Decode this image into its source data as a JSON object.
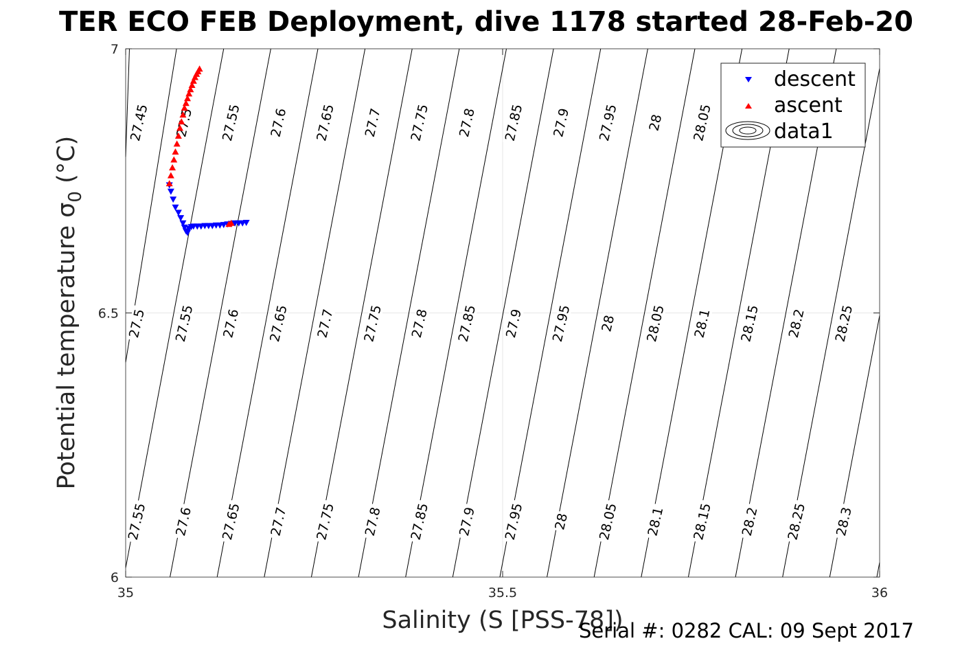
{
  "title": "TER ECO FEB Deployment, dive 1178 started 28-Feb-20",
  "footer": "Serial #: 0282  CAL: 09 Sept 2017",
  "chart_data": {
    "type": "scatter",
    "xlabel": "Salinity (S [PSS-78])",
    "ylabel_main": "Potential temperature σ",
    "ylabel_sub": "0",
    "ylabel_unit": " (°C)",
    "xlim": [
      35,
      36
    ],
    "ylim": [
      6,
      7
    ],
    "xticks": [
      35,
      35.5,
      36
    ],
    "xtick_labels": [
      "35",
      "35.5",
      "36"
    ],
    "yticks": [
      6,
      6.5,
      7
    ],
    "ytick_labels": [
      "6",
      "6.5",
      "7"
    ],
    "grid": true,
    "legend_position": "top-right",
    "legend": [
      "descent",
      "ascent",
      "data1"
    ],
    "colors": {
      "descent": "#0000ff",
      "ascent": "#ff0000",
      "contour": "#000000",
      "grid": "#e6e6e6"
    },
    "series": [
      {
        "name": "descent",
        "marker": "triangle-down",
        "x": [
          35.058,
          35.06,
          35.063,
          35.066,
          35.07,
          35.073,
          35.076,
          35.078,
          35.08,
          35.082,
          35.084,
          35.087,
          35.09,
          35.095,
          35.1,
          35.105,
          35.11,
          35.115,
          35.12,
          35.125,
          35.13,
          35.135,
          35.14,
          35.145,
          35.15,
          35.155,
          35.16
        ],
        "y": [
          6.742,
          6.73,
          6.715,
          6.7,
          6.69,
          6.68,
          6.67,
          6.662,
          6.655,
          6.652,
          6.66,
          6.663,
          6.664,
          6.664,
          6.664,
          6.665,
          6.665,
          6.665,
          6.666,
          6.666,
          6.667,
          6.668,
          6.669,
          6.67,
          6.67,
          6.67,
          6.671
        ]
      },
      {
        "name": "ascent",
        "marker": "triangle-up",
        "x": [
          35.058,
          35.06,
          35.062,
          35.064,
          35.066,
          35.068,
          35.07,
          35.072,
          35.074,
          35.076,
          35.078,
          35.08,
          35.082,
          35.084,
          35.086,
          35.088,
          35.09,
          35.092,
          35.094,
          35.096,
          35.098,
          35.137,
          35.14
        ],
        "y": [
          6.745,
          6.76,
          6.775,
          6.79,
          6.805,
          6.82,
          6.835,
          6.85,
          6.862,
          6.875,
          6.888,
          6.897,
          6.906,
          6.915,
          6.923,
          6.931,
          6.939,
          6.946,
          6.952,
          6.957,
          6.962,
          6.668,
          6.67
        ]
      }
    ],
    "contours": {
      "name": "data1",
      "lines": [
        {
          "x": [
            35.0,
            35.005
          ],
          "y": [
            6.7955,
            7.0
          ]
        },
        {
          "x": [
            35.0,
            35.0675
          ],
          "y": [
            6.4065,
            7.0
          ]
        },
        {
          "x": [
            35.0,
            35.13
          ],
          "y": [
            6.0175,
            7.0
          ]
        },
        {
          "x": [
            35.0588,
            35.1925
          ],
          "y": [
            6.0,
            7.0
          ]
        },
        {
          "x": [
            35.1213,
            35.255
          ],
          "y": [
            6.0,
            7.0
          ]
        },
        {
          "x": [
            35.1838,
            35.3175
          ],
          "y": [
            6.0,
            7.0
          ]
        },
        {
          "x": [
            35.2463,
            35.38
          ],
          "y": [
            6.0,
            7.0
          ]
        },
        {
          "x": [
            35.3088,
            35.4425
          ],
          "y": [
            6.0,
            7.0
          ]
        },
        {
          "x": [
            35.3713,
            35.505
          ],
          "y": [
            6.0,
            7.0
          ]
        },
        {
          "x": [
            35.4338,
            35.5675
          ],
          "y": [
            6.0,
            7.0
          ]
        },
        {
          "x": [
            35.4963,
            35.63
          ],
          "y": [
            6.0,
            7.0
          ]
        },
        {
          "x": [
            35.5588,
            35.6925
          ],
          "y": [
            6.0,
            7.0
          ]
        },
        {
          "x": [
            35.6213,
            35.755
          ],
          "y": [
            6.0,
            7.0
          ]
        },
        {
          "x": [
            35.6838,
            35.8175
          ],
          "y": [
            6.0,
            7.0
          ]
        },
        {
          "x": [
            35.7463,
            35.88
          ],
          "y": [
            6.0,
            7.0
          ]
        },
        {
          "x": [
            35.8088,
            35.9425
          ],
          "y": [
            6.0,
            7.0
          ]
        },
        {
          "x": [
            35.8713,
            36.0
          ],
          "y": [
            6.0,
            6.9625
          ]
        },
        {
          "x": [
            35.9338,
            36.0
          ],
          "y": [
            6.0,
            6.495
          ]
        },
        {
          "x": [
            35.9963,
            36.0
          ],
          "y": [
            6.0,
            6.0277
          ]
        }
      ],
      "labels": [
        {
          "text": "27.45",
          "x": 35.018,
          "y": 6.86
        },
        {
          "text": "27.5",
          "x": 35.078,
          "y": 6.86
        },
        {
          "text": "27.55",
          "x": 35.14,
          "y": 6.86
        },
        {
          "text": "27.6",
          "x": 35.203,
          "y": 6.86
        },
        {
          "text": "27.65",
          "x": 35.265,
          "y": 6.86
        },
        {
          "text": "27.7",
          "x": 35.328,
          "y": 6.86
        },
        {
          "text": "27.75",
          "x": 35.39,
          "y": 6.86
        },
        {
          "text": "27.8",
          "x": 35.453,
          "y": 6.86
        },
        {
          "text": "27.85",
          "x": 35.515,
          "y": 6.86
        },
        {
          "text": "27.9",
          "x": 35.578,
          "y": 6.86
        },
        {
          "text": "27.95",
          "x": 35.64,
          "y": 6.86
        },
        {
          "text": "28",
          "x": 35.703,
          "y": 6.86
        },
        {
          "text": "28.05",
          "x": 35.765,
          "y": 6.86
        },
        {
          "text": "27.5",
          "x": 35.015,
          "y": 6.48
        },
        {
          "text": "27.55",
          "x": 35.078,
          "y": 6.48
        },
        {
          "text": "27.6",
          "x": 35.14,
          "y": 6.48
        },
        {
          "text": "27.65",
          "x": 35.203,
          "y": 6.48
        },
        {
          "text": "27.7",
          "x": 35.265,
          "y": 6.48
        },
        {
          "text": "27.75",
          "x": 35.328,
          "y": 6.48
        },
        {
          "text": "27.8",
          "x": 35.39,
          "y": 6.48
        },
        {
          "text": "27.85",
          "x": 35.453,
          "y": 6.48
        },
        {
          "text": "27.9",
          "x": 35.515,
          "y": 6.48
        },
        {
          "text": "27.95",
          "x": 35.578,
          "y": 6.48
        },
        {
          "text": "28",
          "x": 35.64,
          "y": 6.48
        },
        {
          "text": "28.05",
          "x": 35.703,
          "y": 6.48
        },
        {
          "text": "28.1",
          "x": 35.765,
          "y": 6.48
        },
        {
          "text": "28.15",
          "x": 35.828,
          "y": 6.48
        },
        {
          "text": "28.2",
          "x": 35.89,
          "y": 6.48
        },
        {
          "text": "28.25",
          "x": 35.953,
          "y": 6.48
        },
        {
          "text": "27.55",
          "x": 35.015,
          "y": 6.105
        },
        {
          "text": "27.6",
          "x": 35.077,
          "y": 6.105
        },
        {
          "text": "27.65",
          "x": 35.14,
          "y": 6.105
        },
        {
          "text": "27.7",
          "x": 35.203,
          "y": 6.105
        },
        {
          "text": "27.75",
          "x": 35.265,
          "y": 6.105
        },
        {
          "text": "27.8",
          "x": 35.328,
          "y": 6.105
        },
        {
          "text": "27.85",
          "x": 35.39,
          "y": 6.105
        },
        {
          "text": "27.9",
          "x": 35.453,
          "y": 6.105
        },
        {
          "text": "27.95",
          "x": 35.515,
          "y": 6.105
        },
        {
          "text": "28",
          "x": 35.578,
          "y": 6.105
        },
        {
          "text": "28.05",
          "x": 35.64,
          "y": 6.105
        },
        {
          "text": "28.1",
          "x": 35.703,
          "y": 6.105
        },
        {
          "text": "28.15",
          "x": 35.765,
          "y": 6.105
        },
        {
          "text": "28.2",
          "x": 35.828,
          "y": 6.105
        },
        {
          "text": "28.25",
          "x": 35.89,
          "y": 6.105
        },
        {
          "text": "28.3",
          "x": 35.953,
          "y": 6.105
        }
      ]
    }
  }
}
